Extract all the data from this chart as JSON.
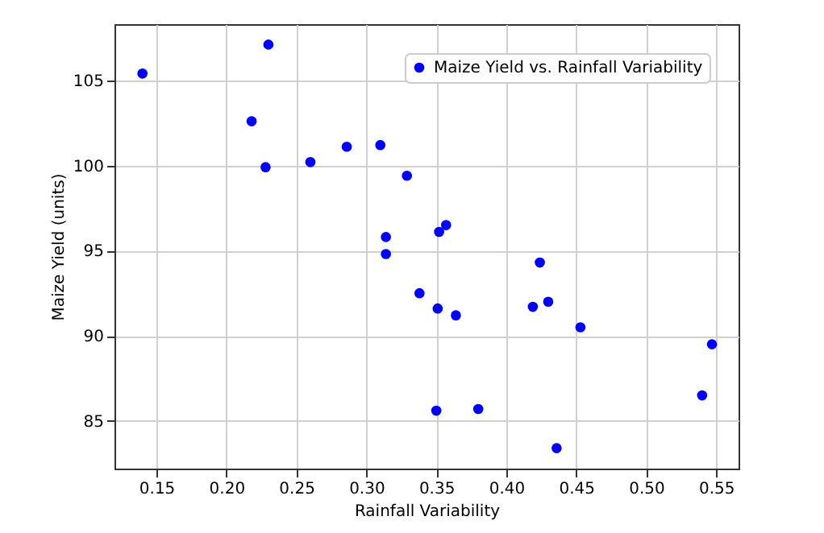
{
  "chart_data": {
    "type": "scatter",
    "xlabel": "Rainfall Variability",
    "ylabel": "Maize Yield (units)",
    "xlim": [
      0.12,
      0.566
    ],
    "ylim": [
      82.2,
      108.3
    ],
    "xticks": [
      0.15,
      {
        "value": 0.2,
        "label": "0.20"
      },
      0.25,
      {
        "value": 0.3,
        "label": "0.30"
      },
      0.35,
      {
        "value": 0.4,
        "label": "0.40"
      },
      0.45,
      {
        "value": 0.5,
        "label": "0.50"
      },
      0.55
    ],
    "yticks": [
      85,
      90,
      95,
      100,
      105
    ],
    "grid": true,
    "legend": "top right",
    "marker": "circle",
    "series": [
      {
        "name": "Maize Yield vs. Rainfall Variability",
        "color": "#0000ff",
        "x": [
          0.14,
          0.23,
          0.218,
          0.228,
          0.26,
          0.286,
          0.31,
          0.329,
          0.314,
          0.314,
          0.357,
          0.352,
          0.424,
          0.338,
          0.351,
          0.364,
          0.419,
          0.43,
          0.453,
          0.547,
          0.54,
          0.35,
          0.38,
          0.436
        ],
        "values": [
          105.4,
          107.1,
          102.6,
          99.9,
          100.2,
          101.1,
          101.2,
          99.4,
          95.8,
          94.8,
          96.5,
          96.1,
          94.3,
          92.5,
          91.6,
          91.2,
          91.7,
          92.0,
          90.5,
          89.5,
          86.5,
          85.6,
          85.7,
          83.4
        ]
      }
    ]
  }
}
